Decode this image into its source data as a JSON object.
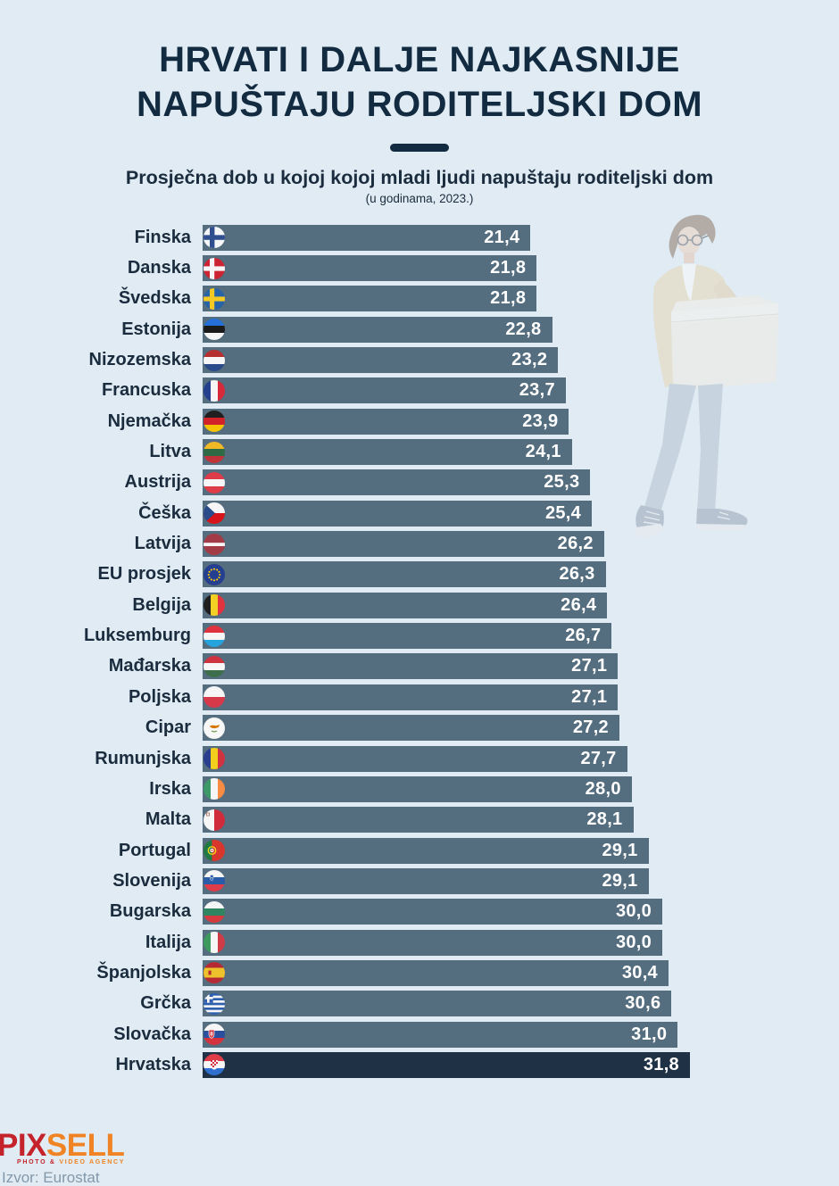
{
  "header": {
    "title_line1": "HRVATI I DALJE NAJKASNIJE",
    "title_line2": "NAPUŠTAJU RODITELJSKI DOM",
    "subtitle": "Prosječna dob u kojoj kojoj mladi ljudi napuštaju roditeljski dom",
    "subnote": "(u godinama, 2023.)"
  },
  "footer": {
    "logo_part1": "PIX",
    "logo_part2": "SELL",
    "tagline_part1": "PHOTO &",
    "tagline_part2": "VIDEO AGENCY",
    "source": "Izvor: Eurostat"
  },
  "colors": {
    "background": "#e0ebf3",
    "bar": "#546d7f",
    "bar_highlight": "#1e3145",
    "ink": "#132b40",
    "label_text": "#1a2c3d",
    "value_text": "#ffffff",
    "logo_red": "#c4232b",
    "logo_orange": "#f08424",
    "source_text": "#8398aa"
  },
  "chart_data": {
    "type": "bar",
    "orientation": "horizontal",
    "title": "Prosječna dob u kojoj kojoj mladi ljudi napuštaju roditeljski dom",
    "unit_note": "(u godinama, 2023.)",
    "xlim": [
      0,
      31.8
    ],
    "grid": false,
    "legend": false,
    "value_decimal_separator": ",",
    "rows": [
      {
        "label": "Finska",
        "value": 21.4,
        "display": "21,4",
        "flag": "fi",
        "flag_icon": "finland-flag-icon",
        "highlight": false
      },
      {
        "label": "Danska",
        "value": 21.8,
        "display": "21,8",
        "flag": "dk",
        "flag_icon": "denmark-flag-icon",
        "highlight": false
      },
      {
        "label": "Švedska",
        "value": 21.8,
        "display": "21,8",
        "flag": "se",
        "flag_icon": "sweden-flag-icon",
        "highlight": false
      },
      {
        "label": "Estonija",
        "value": 22.8,
        "display": "22,8",
        "flag": "ee",
        "flag_icon": "estonia-flag-icon",
        "highlight": false
      },
      {
        "label": "Nizozemska",
        "value": 23.2,
        "display": "23,2",
        "flag": "nl",
        "flag_icon": "netherlands-flag-icon",
        "highlight": false
      },
      {
        "label": "Francuska",
        "value": 23.7,
        "display": "23,7",
        "flag": "fr",
        "flag_icon": "france-flag-icon",
        "highlight": false
      },
      {
        "label": "Njemačka",
        "value": 23.9,
        "display": "23,9",
        "flag": "de",
        "flag_icon": "germany-flag-icon",
        "highlight": false
      },
      {
        "label": "Litva",
        "value": 24.1,
        "display": "24,1",
        "flag": "lt",
        "flag_icon": "lithuania-flag-icon",
        "highlight": false
      },
      {
        "label": "Austrija",
        "value": 25.3,
        "display": "25,3",
        "flag": "at",
        "flag_icon": "austria-flag-icon",
        "highlight": false
      },
      {
        "label": "Češka",
        "value": 25.4,
        "display": "25,4",
        "flag": "cz",
        "flag_icon": "czechia-flag-icon",
        "highlight": false
      },
      {
        "label": "Latvija",
        "value": 26.2,
        "display": "26,2",
        "flag": "lv",
        "flag_icon": "latvia-flag-icon",
        "highlight": false
      },
      {
        "label": "EU prosjek",
        "value": 26.3,
        "display": "26,3",
        "flag": "eu",
        "flag_icon": "eu-flag-icon",
        "highlight": false
      },
      {
        "label": "Belgija",
        "value": 26.4,
        "display": "26,4",
        "flag": "be",
        "flag_icon": "belgium-flag-icon",
        "highlight": false
      },
      {
        "label": "Luksemburg",
        "value": 26.7,
        "display": "26,7",
        "flag": "lu",
        "flag_icon": "luxembourg-flag-icon",
        "highlight": false
      },
      {
        "label": "Mađarska",
        "value": 27.1,
        "display": "27,1",
        "flag": "hu",
        "flag_icon": "hungary-flag-icon",
        "highlight": false
      },
      {
        "label": "Poljska",
        "value": 27.1,
        "display": "27,1",
        "flag": "pl",
        "flag_icon": "poland-flag-icon",
        "highlight": false
      },
      {
        "label": "Cipar",
        "value": 27.2,
        "display": "27,2",
        "flag": "cy",
        "flag_icon": "cyprus-flag-icon",
        "highlight": false
      },
      {
        "label": "Rumunjska",
        "value": 27.7,
        "display": "27,7",
        "flag": "ro",
        "flag_icon": "romania-flag-icon",
        "highlight": false
      },
      {
        "label": "Irska",
        "value": 28.0,
        "display": "28,0",
        "flag": "ie",
        "flag_icon": "ireland-flag-icon",
        "highlight": false
      },
      {
        "label": "Malta",
        "value": 28.1,
        "display": "28,1",
        "flag": "mt",
        "flag_icon": "malta-flag-icon",
        "highlight": false
      },
      {
        "label": "Portugal",
        "value": 29.1,
        "display": "29,1",
        "flag": "pt",
        "flag_icon": "portugal-flag-icon",
        "highlight": false
      },
      {
        "label": "Slovenija",
        "value": 29.1,
        "display": "29,1",
        "flag": "si",
        "flag_icon": "slovenia-flag-icon",
        "highlight": false
      },
      {
        "label": "Bugarska",
        "value": 30.0,
        "display": "30,0",
        "flag": "bg",
        "flag_icon": "bulgaria-flag-icon",
        "highlight": false
      },
      {
        "label": "Italija",
        "value": 30.0,
        "display": "30,0",
        "flag": "it",
        "flag_icon": "italy-flag-icon",
        "highlight": false
      },
      {
        "label": "Španjolska",
        "value": 30.4,
        "display": "30,4",
        "flag": "es",
        "flag_icon": "spain-flag-icon",
        "highlight": false
      },
      {
        "label": "Grčka",
        "value": 30.6,
        "display": "30,6",
        "flag": "gr",
        "flag_icon": "greece-flag-icon",
        "highlight": false
      },
      {
        "label": "Slovačka",
        "value": 31.0,
        "display": "31,0",
        "flag": "sk",
        "flag_icon": "slovakia-flag-icon",
        "highlight": false
      },
      {
        "label": "Hrvatska",
        "value": 31.8,
        "display": "31,8",
        "flag": "hr",
        "flag_icon": "croatia-flag-icon",
        "highlight": true
      }
    ]
  }
}
